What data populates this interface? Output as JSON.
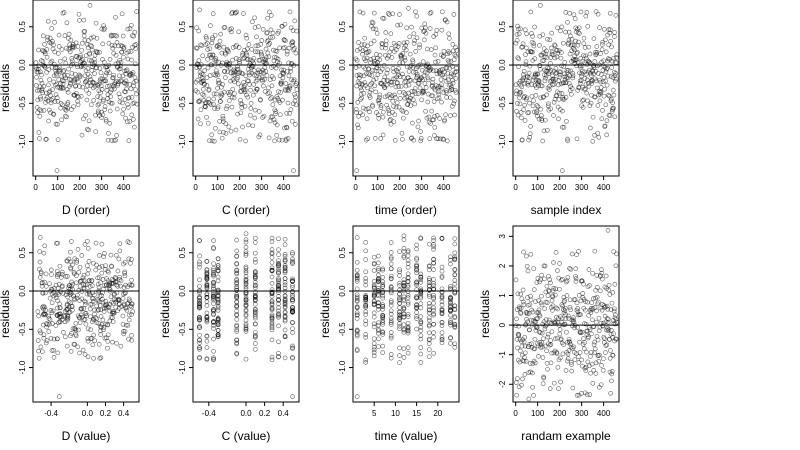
{
  "chart_data": [
    {
      "type": "scatter",
      "xlabel": "D (order)",
      "ylabel": "residuals",
      "xlim": [
        -12,
        470
      ],
      "ylim": [
        -1.45,
        0.85
      ],
      "xticks": [
        0,
        100,
        200,
        300,
        400
      ],
      "yticks": [
        -1.0,
        -0.5,
        0.0,
        0.5
      ],
      "yticklabels": [
        "-1.0",
        "-0.5",
        "0.0",
        "0.5"
      ],
      "zero_line": true,
      "points": {
        "kind": "sequential",
        "x": [
          1,
          460
        ],
        "yrange": [
          -1.0,
          0.7
        ],
        "extremes": [
          [
            97,
            -1.38
          ],
          [
            247,
            0.78
          ]
        ]
      }
    },
    {
      "type": "scatter",
      "xlabel": "C (order)",
      "ylabel": "residuals",
      "xlim": [
        -12,
        470
      ],
      "ylim": [
        -1.45,
        0.85
      ],
      "xticks": [
        0,
        100,
        200,
        300,
        400
      ],
      "yticks": [
        -1.0,
        -0.5,
        0.0,
        0.5
      ],
      "yticklabels": [
        "-1.0",
        "-0.5",
        "0.0",
        "0.5"
      ],
      "zero_line": true,
      "points": {
        "kind": "sequential",
        "x": [
          1,
          460
        ],
        "yrange": [
          -1.0,
          0.7
        ],
        "extremes": [
          [
            445,
            -1.38
          ],
          [
            18,
            0.72
          ]
        ]
      }
    },
    {
      "type": "scatter",
      "xlabel": "time (order)",
      "ylabel": "residuals",
      "xlim": [
        -12,
        470
      ],
      "ylim": [
        -1.45,
        0.85
      ],
      "xticks": [
        0,
        100,
        200,
        300,
        400
      ],
      "yticks": [
        -1.0,
        -0.5,
        0.0,
        0.5
      ],
      "yticklabels": [
        "-1.0",
        "-0.5",
        "0.0",
        "0.5"
      ],
      "zero_line": true,
      "points": {
        "kind": "sequential",
        "x": [
          1,
          460
        ],
        "yrange": [
          -1.0,
          0.7
        ],
        "extremes": [
          [
            5,
            -1.38
          ],
          [
            240,
            0.74
          ]
        ]
      }
    },
    {
      "type": "scatter",
      "xlabel": "sample index",
      "ylabel": "residuals",
      "xlim": [
        -12,
        470
      ],
      "ylim": [
        -1.45,
        0.85
      ],
      "xticks": [
        0,
        100,
        200,
        300,
        400
      ],
      "yticks": [
        -1.0,
        -0.5,
        0.0,
        0.5
      ],
      "yticklabels": [
        "-1.0",
        "-0.5",
        "0.0",
        "0.5"
      ],
      "zero_line": true,
      "points": {
        "kind": "sequential",
        "x": [
          1,
          460
        ],
        "yrange": [
          -1.0,
          0.7
        ],
        "extremes": [
          [
            212,
            -1.38
          ],
          [
            112,
            0.78
          ]
        ]
      }
    },
    {
      "type": "scatter",
      "xlabel": "D (value)",
      "ylabel": "residuals",
      "xlim": [
        -0.6,
        0.57
      ],
      "ylim": [
        -1.45,
        0.85
      ],
      "xticks": [
        -0.4,
        0.0,
        0.2,
        0.4
      ],
      "xticklabels": [
        "-0.4",
        "0.0",
        "0.2",
        "0.4"
      ],
      "yticks": [
        -1.0,
        -0.5,
        0.0,
        0.5
      ],
      "yticklabels": [
        "-1.0",
        "-0.5",
        "0.0",
        "0.5"
      ],
      "zero_line": true,
      "points": {
        "kind": "continuous",
        "x": [
          -0.55,
          0.5
        ],
        "yrange": [
          -0.9,
          0.65
        ],
        "extremes": [
          [
            -0.31,
            -1.38
          ],
          [
            -0.52,
            0.7
          ]
        ]
      }
    },
    {
      "type": "scatter",
      "xlabel": "C (value)",
      "ylabel": "residuals",
      "xlim": [
        -0.57,
        0.57
      ],
      "ylim": [
        -1.45,
        0.85
      ],
      "xticks": [
        -0.4,
        0.0,
        0.2,
        0.4
      ],
      "xticklabels": [
        "-0.4",
        "0.0",
        "0.2",
        "0.4"
      ],
      "yticks": [
        -1.0,
        -0.5,
        0.0,
        0.5
      ],
      "yticklabels": [
        "-1.0",
        "-0.5",
        "0.0",
        "0.5"
      ],
      "zero_line": true,
      "points": {
        "kind": "discrete",
        "levels": [
          -0.5,
          -0.42,
          -0.35,
          -0.3,
          -0.1,
          0.0,
          0.1,
          0.28,
          0.35,
          0.42,
          0.5
        ],
        "yrange": [
          -0.9,
          0.7
        ],
        "extremes": [
          [
            0.5,
            -1.38
          ],
          [
            0.0,
            0.75
          ]
        ]
      }
    },
    {
      "type": "scatter",
      "xlabel": "time (value)",
      "ylabel": "residuals",
      "xlim": [
        0,
        25
      ],
      "ylim": [
        -1.45,
        0.85
      ],
      "xticks": [
        5,
        10,
        15,
        20
      ],
      "yticks": [
        -1.0,
        -0.5,
        0.0,
        0.5
      ],
      "yticklabels": [
        "-1.0",
        "-0.5",
        "0.0",
        "0.5"
      ],
      "zero_line": true,
      "points": {
        "kind": "discrete",
        "levels": [
          1,
          3,
          5,
          6,
          7,
          9,
          11,
          12,
          13,
          15,
          16,
          18,
          19,
          21,
          23,
          24
        ],
        "yrange": [
          -0.95,
          0.7
        ],
        "extremes": [
          [
            1,
            -1.38
          ],
          [
            12,
            0.72
          ]
        ]
      }
    },
    {
      "type": "scatter",
      "xlabel": "randam example",
      "ylabel": "residuals",
      "xlim": [
        -12,
        470
      ],
      "ylim": [
        -2.6,
        3.35
      ],
      "xticks": [
        0,
        100,
        200,
        300,
        400
      ],
      "yticks": [
        -2,
        -1,
        0,
        1,
        2,
        3
      ],
      "yticklabels": [
        "-2",
        "-1",
        "0",
        "1",
        "2",
        "3"
      ],
      "zero_line": true,
      "points": {
        "kind": "sequential",
        "x": [
          1,
          460
        ],
        "yrange": [
          -2.4,
          2.5
        ],
        "extremes": [
          [
            420,
            3.2
          ],
          [
            60,
            -2.5
          ]
        ]
      }
    }
  ]
}
